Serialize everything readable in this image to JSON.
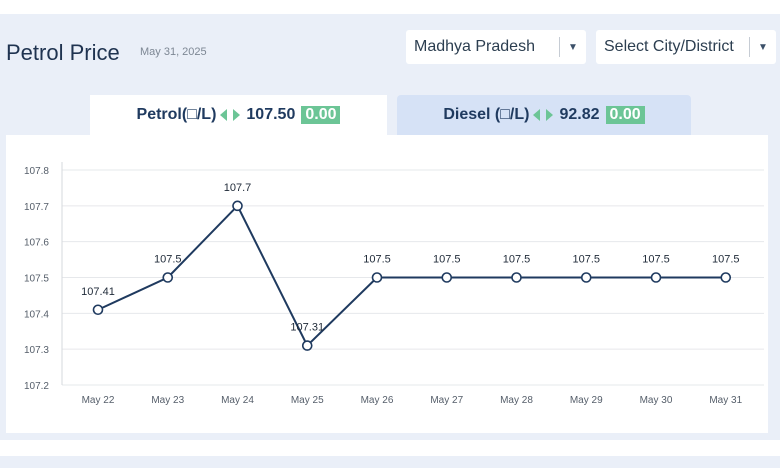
{
  "header": {
    "title": "Petrol Price",
    "date": "May 31, 2025"
  },
  "filters": {
    "state": "Madhya Pradesh",
    "city": "Select City/District"
  },
  "tabs": {
    "petrol": {
      "label": "Petrol(□/L)",
      "price": "107.50",
      "change": "0.00"
    },
    "diesel": {
      "label": "Diesel (□/L)",
      "price": "92.82",
      "change": "0.00"
    }
  },
  "colors": {
    "line": "#1f3a5f",
    "change_badge": "#6cc596",
    "active_tab": "#ffffff",
    "inactive_tab": "#d6e2f6",
    "arrow": "#6cc596"
  },
  "chart_data": {
    "type": "line",
    "categories": [
      "May 22",
      "May 23",
      "May 24",
      "May 25",
      "May 26",
      "May 27",
      "May 28",
      "May 29",
      "May 30",
      "May 31"
    ],
    "series": [
      {
        "values": [
          107.41,
          107.5,
          107.7,
          107.31,
          107.5,
          107.5,
          107.5,
          107.5,
          107.5,
          107.5
        ]
      }
    ],
    "data_labels": [
      "107.41",
      "107.5",
      "107.7",
      "107.31",
      "107.5",
      "107.5",
      "107.5",
      "107.5",
      "107.5",
      "107.5"
    ],
    "yticks": [
      "107.2",
      "107.3",
      "107.4",
      "107.5",
      "107.6",
      "107.7",
      "107.8"
    ],
    "ylim": [
      107.2,
      107.8
    ],
    "grid": true,
    "title": "",
    "xlabel": "",
    "ylabel": ""
  }
}
